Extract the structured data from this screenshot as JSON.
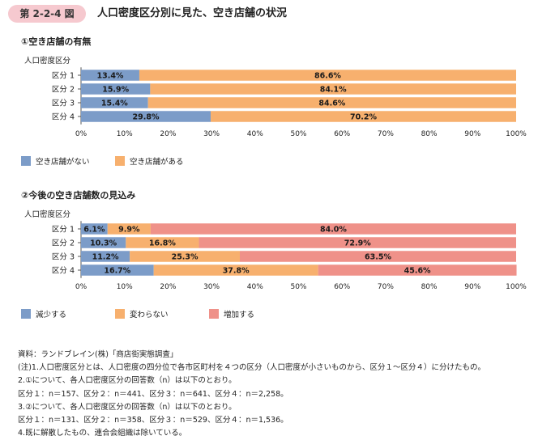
{
  "header": {
    "badge": "第 2-2-4 図",
    "title": "人口密度区分別に見た、空き店舗の状況"
  },
  "chart_data": [
    {
      "type": "bar",
      "orientation": "horizontal",
      "stacked": true,
      "title": "①空き店舗の有無",
      "ylabel": "人口密度区分",
      "categories": [
        "区分 1",
        "区分 2",
        "区分 3",
        "区分 4"
      ],
      "series": [
        {
          "name": "空き店舗がない",
          "color": "#7c9cc8",
          "values": [
            13.4,
            15.9,
            15.4,
            29.8
          ]
        },
        {
          "name": "空き店舗がある",
          "color": "#f7b06e",
          "values": [
            86.6,
            84.1,
            84.6,
            70.2
          ]
        }
      ],
      "xlim": [
        0,
        100
      ],
      "xticks": [
        "0%",
        "10%",
        "20%",
        "30%",
        "40%",
        "50%",
        "60%",
        "70%",
        "80%",
        "90%",
        "100%"
      ],
      "legend": "bottom-left"
    },
    {
      "type": "bar",
      "orientation": "horizontal",
      "stacked": true,
      "title": "②今後の空き店舗数の見込み",
      "ylabel": "人口密度区分",
      "categories": [
        "区分 1",
        "区分 2",
        "区分 3",
        "区分 4"
      ],
      "series": [
        {
          "name": "減少する",
          "color": "#7c9cc8",
          "values": [
            6.1,
            10.3,
            11.2,
            16.7
          ]
        },
        {
          "name": "変わらない",
          "color": "#f7b06e",
          "values": [
            9.9,
            16.8,
            25.3,
            37.8
          ]
        },
        {
          "name": "増加する",
          "color": "#ef9189",
          "values": [
            84.0,
            72.9,
            63.5,
            45.6
          ]
        }
      ],
      "xlim": [
        0,
        100
      ],
      "xticks": [
        "0%",
        "10%",
        "20%",
        "30%",
        "40%",
        "50%",
        "60%",
        "70%",
        "80%",
        "90%",
        "100%"
      ],
      "legend": "bottom-left"
    }
  ],
  "notes": [
    "資料：ランドブレイン(株)「商店街実態調査」",
    "(注)1.人口密度区分とは、人口密度の四分位で各市区町村を４つの区分（人口密度が小さいものから、区分１〜区分４）に分けたもの。",
    "2.①について、各人口密度区分の回答数（n）は以下のとおり。",
    "区分１：n＝157、区分２：n＝441、区分３：n＝641、区分４：n＝2,258。",
    "3.②について、各人口密度区分の回答数（n）は以下のとおり。",
    "区分１：n＝131、区分２：n＝358、区分３：n＝529、区分４：n＝1,536。",
    "4.既に解散したもの、連合会組織は除いている。"
  ]
}
